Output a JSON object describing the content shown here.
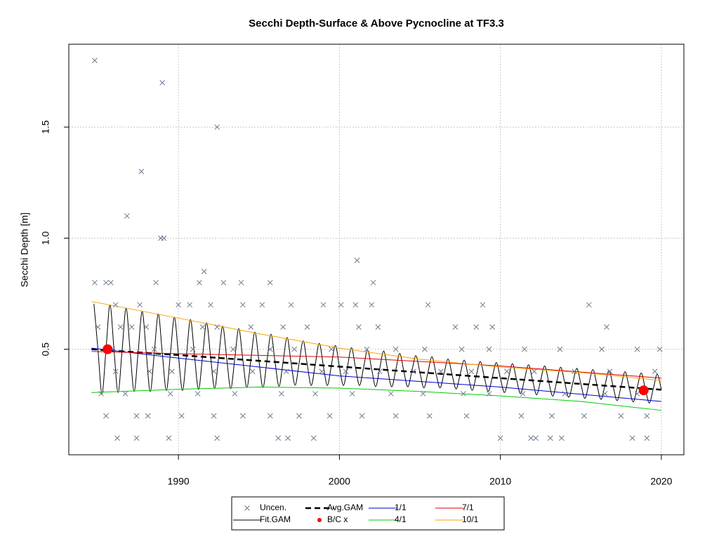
{
  "chart_data": {
    "type": "line",
    "title": "Secchi Depth-Surface & Above Pycnocline at TF3.3",
    "y_label": "Secchi Depth [m]",
    "xlim": [
      1983.19,
      2021.4
    ],
    "ylim": [
      0.025,
      1.873
    ],
    "xticks": [
      1990,
      2000,
      2010,
      2020
    ],
    "yticks": [
      {
        "value": 0.5,
        "label": "0.5"
      },
      {
        "value": 1.0,
        "label": "1.0"
      },
      {
        "value": 1.5,
        "label": "1.5"
      }
    ],
    "grid": true,
    "legend": "bottom",
    "series": [
      {
        "name": "Uncen.",
        "style": "points",
        "marker": "x",
        "color": "#6c7a8f",
        "x": [
          1984.8,
          1989.0,
          1992.4,
          1987.7,
          1986.8,
          1988.9,
          1989.1,
          1991.6,
          2001.1,
          2002.1,
          1984.8,
          1985.5,
          1985.8,
          1988.6,
          1991.3,
          1992.8,
          1993.9,
          1995.7,
          2015.5,
          2008.9,
          2005.5,
          1986.1,
          1987.6,
          1990.0,
          1990.7,
          1992.0,
          1994.0,
          1995.2,
          1997.0,
          1999.0,
          2000.1,
          2001.0,
          2002.0,
          1985.0,
          1986.4,
          1987.1,
          1988.0,
          1991.5,
          1992.4,
          1994.5,
          1996.5,
          1998.0,
          2001.2,
          2002.4,
          2007.2,
          2008.5,
          2009.5,
          2016.6,
          1985.9,
          1988.5,
          1990.9,
          1993.4,
          1995.7,
          1997.2,
          1999.5,
          2001.7,
          2003.5,
          2005.3,
          2007.6,
          2009.3,
          2011.5,
          2013.7,
          2016.3,
          2018.5,
          2019.9,
          1986.1,
          1988.2,
          1989.6,
          1992.2,
          1994.6,
          1996.7,
          1998.9,
          2000.4,
          2002.5,
          2004.6,
          2006.3,
          2008.2,
          2010.4,
          2012.1,
          2014.6,
          2016.8,
          2019.6,
          1985.2,
          1986.7,
          1989.5,
          1991.2,
          1993.5,
          1996.4,
          1998.5,
          2000.8,
          2003.2,
          2005.2,
          2007.7,
          2009.3,
          2011.4,
          2014.0,
          2016.5,
          2018.5,
          1985.5,
          1987.4,
          1988.1,
          1990.2,
          1992.2,
          1994.0,
          1995.7,
          1997.5,
          1999.4,
          2001.4,
          2003.5,
          2005.6,
          2007.9,
          2011.3,
          2013.2,
          2015.2,
          2017.5,
          2019.1,
          1986.2,
          1987.4,
          1989.4,
          1992.4,
          1996.2,
          1996.8,
          1998.4,
          2010.0,
          2011.9,
          2012.2,
          2013.1,
          2013.8,
          2018.2,
          2019.1
        ],
        "values": [
          1.8,
          1.7,
          1.5,
          1.3,
          1.1,
          1.0,
          1.0,
          0.85,
          0.9,
          0.8,
          0.8,
          0.8,
          0.8,
          0.8,
          0.8,
          0.8,
          0.8,
          0.8,
          0.7,
          0.7,
          0.7,
          0.7,
          0.7,
          0.7,
          0.7,
          0.7,
          0.7,
          0.7,
          0.7,
          0.7,
          0.7,
          0.7,
          0.7,
          0.6,
          0.6,
          0.6,
          0.6,
          0.6,
          0.6,
          0.6,
          0.6,
          0.6,
          0.6,
          0.6,
          0.6,
          0.6,
          0.6,
          0.6,
          0.5,
          0.5,
          0.5,
          0.5,
          0.5,
          0.5,
          0.5,
          0.5,
          0.5,
          0.5,
          0.5,
          0.5,
          0.5,
          0.5,
          0.5,
          0.5,
          0.5,
          0.4,
          0.4,
          0.4,
          0.4,
          0.4,
          0.4,
          0.4,
          0.4,
          0.4,
          0.4,
          0.4,
          0.4,
          0.4,
          0.4,
          0.4,
          0.4,
          0.4,
          0.3,
          0.3,
          0.3,
          0.3,
          0.3,
          0.3,
          0.3,
          0.3,
          0.3,
          0.3,
          0.3,
          0.3,
          0.3,
          0.3,
          0.3,
          0.3,
          0.2,
          0.2,
          0.2,
          0.2,
          0.2,
          0.2,
          0.2,
          0.2,
          0.2,
          0.2,
          0.2,
          0.2,
          0.2,
          0.2,
          0.2,
          0.2,
          0.2,
          0.2,
          0.1,
          0.1,
          0.1,
          0.1,
          0.1,
          0.1,
          0.1,
          0.1,
          0.1,
          0.1,
          0.1,
          0.1,
          0.1,
          0.1
        ]
      },
      {
        "name": "Fit.GAM",
        "style": "smooth",
        "color": "#000000",
        "x": [
          1984.75,
          1985,
          1985.25,
          1985.5,
          1985.75,
          1986,
          1986.25,
          1986.5,
          1986.75,
          1987,
          1987.25,
          1987.5,
          1987.75,
          1988,
          1988.25,
          1988.5,
          1988.75,
          1989,
          1989.25,
          1989.5,
          1989.75,
          1990,
          1990.25,
          1990.5,
          1990.75,
          1991,
          1991.25,
          1991.5,
          1991.75,
          1992,
          1992.25,
          1992.5,
          1992.75,
          1993,
          1993.25,
          1993.5,
          1993.75,
          1994,
          1994.25,
          1994.5,
          1994.75,
          1995,
          1995.25,
          1995.5,
          1995.75,
          1996,
          1996.25,
          1996.5,
          1996.75,
          1997,
          1997.25,
          1997.5,
          1997.75,
          1998,
          1998.25,
          1998.5,
          1998.75,
          1999,
          1999.25,
          1999.5,
          1999.75,
          2000,
          2000.25,
          2000.5,
          2000.75,
          2001,
          2001.25,
          2001.5,
          2001.75,
          2002,
          2002.25,
          2002.5,
          2002.75,
          2003,
          2003.25,
          2003.5,
          2003.75,
          2004,
          2004.25,
          2004.5,
          2004.75,
          2005,
          2005.25,
          2005.5,
          2005.75,
          2006,
          2006.25,
          2006.5,
          2006.75,
          2007,
          2007.25,
          2007.5,
          2007.75,
          2008,
          2008.25,
          2008.5,
          2008.75,
          2009,
          2009.25,
          2009.5,
          2009.75,
          2010,
          2010.25,
          2010.5,
          2010.75,
          2011,
          2011.25,
          2011.5,
          2011.75,
          2012,
          2012.25,
          2012.5,
          2012.75,
          2013,
          2013.25,
          2013.5,
          2013.75,
          2014,
          2014.25,
          2014.5,
          2014.75,
          2015,
          2015.25,
          2015.5,
          2015.75,
          2016,
          2016.25,
          2016.5,
          2016.75,
          2017,
          2017.25,
          2017.5,
          2017.75,
          2018,
          2018.25,
          2018.5,
          2018.75,
          2019,
          2019.25,
          2019.5,
          2019.75,
          2020
        ],
        "values": [
          0.705,
          0.5,
          0.3,
          0.5,
          0.7,
          0.495,
          0.305,
          0.495,
          0.685,
          0.49,
          0.31,
          0.49,
          0.67,
          0.484,
          0.309,
          0.484,
          0.659,
          0.479,
          0.314,
          0.479,
          0.644,
          0.474,
          0.314,
          0.474,
          0.634,
          0.469,
          0.319,
          0.469,
          0.619,
          0.464,
          0.324,
          0.464,
          0.604,
          0.458,
          0.323,
          0.458,
          0.593,
          0.453,
          0.328,
          0.453,
          0.578,
          0.448,
          0.328,
          0.448,
          0.568,
          0.443,
          0.333,
          0.443,
          0.553,
          0.438,
          0.338,
          0.438,
          0.538,
          0.432,
          0.337,
          0.432,
          0.527,
          0.427,
          0.337,
          0.427,
          0.517,
          0.422,
          0.337,
          0.422,
          0.507,
          0.417,
          0.337,
          0.417,
          0.497,
          0.412,
          0.332,
          0.412,
          0.492,
          0.406,
          0.331,
          0.406,
          0.481,
          0.401,
          0.331,
          0.401,
          0.471,
          0.396,
          0.326,
          0.396,
          0.466,
          0.391,
          0.326,
          0.391,
          0.456,
          0.386,
          0.321,
          0.386,
          0.451,
          0.38,
          0.315,
          0.38,
          0.445,
          0.375,
          0.31,
          0.375,
          0.44,
          0.37,
          0.305,
          0.37,
          0.435,
          0.365,
          0.3,
          0.365,
          0.43,
          0.36,
          0.295,
          0.36,
          0.425,
          0.354,
          0.289,
          0.354,
          0.419,
          0.349,
          0.284,
          0.349,
          0.414,
          0.344,
          0.279,
          0.344,
          0.409,
          0.339,
          0.274,
          0.339,
          0.404,
          0.334,
          0.269,
          0.334,
          0.399,
          0.328,
          0.263,
          0.328,
          0.393,
          0.323,
          0.258,
          0.323,
          0.388,
          0.318
        ]
      },
      {
        "name": "Avg.GAM",
        "style": "dashed",
        "color": "#000000",
        "x": [
          1984.6,
          1990,
          1995,
          2000,
          2005,
          2010,
          2015,
          2020
        ],
        "values": [
          0.5,
          0.474,
          0.448,
          0.422,
          0.396,
          0.37,
          0.344,
          0.318
        ]
      },
      {
        "name": "B/C x",
        "style": "points",
        "marker": "dot",
        "color": "#ff0000",
        "x": [
          1985.6,
          2018.9
        ],
        "values": [
          0.5,
          0.315
        ]
      },
      {
        "name": "1/1",
        "style": "line",
        "color": "#0000cd",
        "x": [
          1984.6,
          1990,
          2000,
          2010,
          2020
        ],
        "values": [
          0.505,
          0.46,
          0.38,
          0.33,
          0.265
        ]
      },
      {
        "name": "4/1",
        "style": "line",
        "color": "#00cc00",
        "x": [
          1984.6,
          1990,
          1995,
          2000,
          2005,
          2010,
          2015,
          2020
        ],
        "values": [
          0.305,
          0.32,
          0.33,
          0.325,
          0.31,
          0.29,
          0.265,
          0.225
        ]
      },
      {
        "name": "7/1",
        "style": "line",
        "color": "#e00000",
        "x": [
          1984.6,
          1990,
          2000,
          2010,
          2020
        ],
        "values": [
          0.49,
          0.48,
          0.465,
          0.425,
          0.37
        ]
      },
      {
        "name": "10/1",
        "style": "line",
        "color": "#f5a300",
        "x": [
          1984.6,
          1990,
          1995,
          2000,
          2005,
          2010,
          2015,
          2020
        ],
        "values": [
          0.715,
          0.64,
          0.57,
          0.505,
          0.455,
          0.42,
          0.395,
          0.36
        ]
      }
    ]
  }
}
